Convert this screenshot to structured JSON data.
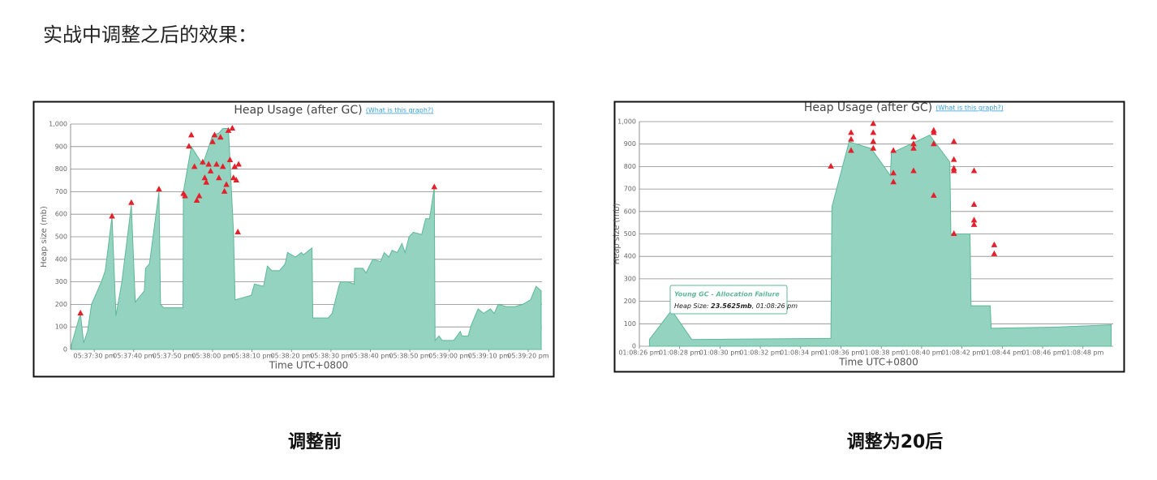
{
  "slide_title": "实战中调整之后的效果：",
  "captions": [
    "调整前",
    "调整为20后"
  ],
  "chart_data": [
    {
      "type": "area",
      "title": "Heap Usage (after GC)",
      "help_link": "(What is this graph?)",
      "x_label": "Time UTC+0800",
      "y_label": "Heap size (mb)",
      "color": "#93d3bf",
      "line_color": "#5fb898",
      "event_color": "#e3202b",
      "grid": true,
      "xlim": [
        63444,
        63563.5
      ],
      "ylim": [
        0,
        1000
      ],
      "xticks": [
        {
          "value": 63450,
          "label": "05:37:30 pm"
        },
        {
          "value": 63460,
          "label": "05:37:40 pm"
        },
        {
          "value": 63470,
          "label": "05:37:50 pm"
        },
        {
          "value": 63480,
          "label": "05:38:00 pm"
        },
        {
          "value": 63490,
          "label": "05:38:10 pm"
        },
        {
          "value": 63500,
          "label": "05:38:20 pm"
        },
        {
          "value": 63510,
          "label": "05:38:30 pm"
        },
        {
          "value": 63520,
          "label": "05:38:40 pm"
        },
        {
          "value": 63530,
          "label": "05:38:50 pm"
        },
        {
          "value": 63540,
          "label": "05:39:00 pm"
        },
        {
          "value": 63550,
          "label": "05:39:10 pm"
        },
        {
          "value": 63560,
          "label": "05:39:20 pm"
        }
      ],
      "yticks": [
        0,
        100,
        200,
        300,
        400,
        500,
        600,
        700,
        800,
        900,
        {
          "value": 1000,
          "label": "1,000"
        }
      ],
      "x": [
        63444.2,
        63446.5,
        63447.3,
        63448.3,
        63449.3,
        63451.8,
        63452.8,
        63454.5,
        63455.5,
        63457,
        63459.4,
        63460.4,
        63462.7,
        63463,
        63464,
        63466.4,
        63466.8,
        63467.6,
        63472.5,
        63472.6,
        63474.6,
        63477.5,
        63480,
        63481.6,
        63482.6,
        63484,
        63485.3,
        63485.7,
        63487.7,
        63489.8,
        63490.6,
        63492.9,
        63493.9,
        63495,
        63497,
        63498.4,
        63499,
        63501,
        63502.5,
        63503,
        63505.2,
        63505.4,
        63509.3,
        63510.3,
        63512,
        63512.4,
        63514.4,
        63515.9,
        63516,
        63518.1,
        63518.9,
        63520.6,
        63522.6,
        63523.5,
        63524.7,
        63525.5,
        63526.8,
        63528,
        63528.8,
        63529.8,
        63530.9,
        63533,
        63534,
        63535,
        63536.2,
        63536.4,
        63537.4,
        63538.2,
        63541.1,
        63542.8,
        63543.2,
        63544.8,
        63545.6,
        63547.3,
        63548.7,
        63550.4,
        63551.4,
        63552.4,
        63554.5,
        63556.6,
        63558.6,
        63560.6,
        63562,
        63563.3
      ],
      "values": [
        20,
        160,
        30,
        80,
        200,
        300,
        350,
        590,
        150,
        300,
        640,
        210,
        260,
        360,
        380,
        700,
        200,
        185,
        185,
        700,
        900,
        820,
        950,
        960,
        980,
        980,
        520,
        220,
        230,
        240,
        290,
        280,
        370,
        350,
        350,
        380,
        430,
        410,
        430,
        420,
        450,
        140,
        140,
        160,
        280,
        300,
        300,
        290,
        360,
        360,
        340,
        400,
        390,
        430,
        410,
        440,
        430,
        470,
        430,
        500,
        520,
        510,
        580,
        580,
        720,
        40,
        60,
        40,
        40,
        80,
        60,
        60,
        110,
        180,
        160,
        180,
        160,
        200,
        190,
        190,
        200,
        220,
        280,
        260
      ],
      "events": {
        "x": [
          63446.5,
          63454.5,
          63459.4,
          63466.4,
          63472.6,
          63473,
          63474,
          63474.6,
          63475.4,
          63476,
          63476.6,
          63477.5,
          63478,
          63478.4,
          63479,
          63479.5,
          63480,
          63480.5,
          63481,
          63481.6,
          63482,
          63482.6,
          63483,
          63483.5,
          63484,
          63484.4,
          63485,
          63485.3,
          63485.6,
          63486,
          63486.4,
          63486.6,
          63536.2
        ],
        "values": [
          160,
          590,
          650,
          710,
          690,
          680,
          900,
          950,
          810,
          660,
          680,
          830,
          760,
          740,
          820,
          790,
          920,
          950,
          820,
          760,
          940,
          810,
          700,
          730,
          970,
          840,
          980,
          760,
          810,
          750,
          520,
          820,
          720
        ]
      }
    },
    {
      "type": "area",
      "title": "Heap Usage (after GC)",
      "help_link": "(What is this graph?)",
      "x_label": "Time UTC+0800",
      "y_label": "Heap size (mb)",
      "color": "#93d3bf",
      "line_color": "#5fb898",
      "event_color": "#e3202b",
      "grid": true,
      "xlim": [
        47306,
        47329.5
      ],
      "ylim": [
        0,
        1000
      ],
      "xticks": [
        {
          "value": 47306,
          "label": "01:08:26 pm"
        },
        {
          "value": 47308,
          "label": "01:08:28 pm"
        },
        {
          "value": 47310,
          "label": "01:08:30 pm"
        },
        {
          "value": 47312,
          "label": "01:08:32 pm"
        },
        {
          "value": 47314,
          "label": "01:08:34 pm"
        },
        {
          "value": 47316,
          "label": "01:08:36 pm"
        },
        {
          "value": 47318,
          "label": "01:08:38 pm"
        },
        {
          "value": 47320,
          "label": "01:08:40 pm"
        },
        {
          "value": 47322,
          "label": "01:08:42 pm"
        },
        {
          "value": 47324,
          "label": "01:08:44 pm"
        },
        {
          "value": 47326,
          "label": "01:08:46 pm"
        },
        {
          "value": 47328,
          "label": "01:08:48 pm"
        }
      ],
      "yticks": [
        0,
        100,
        200,
        300,
        400,
        500,
        600,
        700,
        800,
        900,
        {
          "value": 1000,
          "label": "1,000"
        }
      ],
      "x": [
        47306.5,
        47307.6,
        47308.6,
        47315.5,
        47315.55,
        47316.4,
        47317.5,
        47318.45,
        47318.5,
        47320.4,
        47321.4,
        47321.45,
        47322.4,
        47322.45,
        47323.4,
        47323.45,
        47326.6,
        47329.4
      ],
      "values": [
        30,
        160,
        30,
        35,
        620,
        910,
        880,
        760,
        860,
        940,
        820,
        500,
        500,
        180,
        180,
        80,
        85,
        95
      ],
      "events": {
        "x": [
          47315.5,
          47316.5,
          47316.5,
          47316.5,
          47317.6,
          47317.6,
          47317.6,
          47317.6,
          47318.6,
          47318.6,
          47318.6,
          47319.6,
          47319.6,
          47319.6,
          47319.6,
          47320.6,
          47320.6,
          47320.6,
          47320.6,
          47321.6,
          47321.6,
          47321.6,
          47321.6,
          47321.6,
          47322.6,
          47322.6,
          47322.6,
          47322.6,
          47323.6,
          47323.6
        ],
        "values": [
          800,
          950,
          920,
          870,
          990,
          950,
          910,
          880,
          870,
          770,
          730,
          930,
          900,
          880,
          780,
          960,
          950,
          900,
          670,
          910,
          830,
          790,
          780,
          500,
          780,
          630,
          560,
          540,
          450,
          410
        ]
      },
      "tooltip": {
        "title": "Young GC - Allocation Failure",
        "parts": [
          "Heap Size: ",
          "23.5625mb",
          ", 01:08:26 pm"
        ]
      }
    }
  ]
}
